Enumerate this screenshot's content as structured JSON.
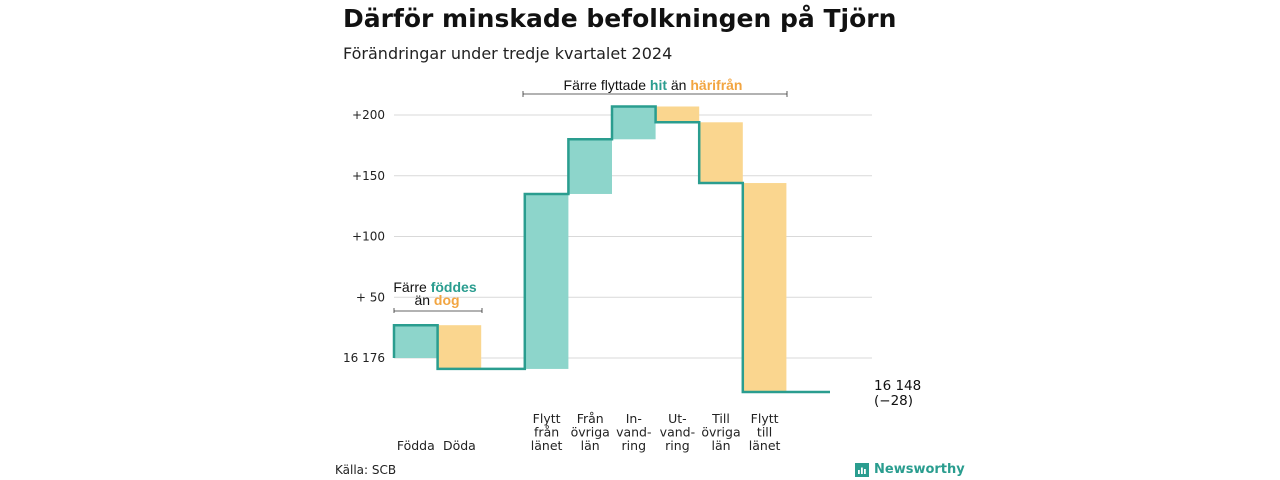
{
  "title": "Därför minskade befolkningen på Tjörn",
  "subtitle": "Förändringar under tredje kvartalet 2024",
  "source": "Källa: SCB",
  "brand": "Newsworthy",
  "colors": {
    "increase": "#8dd5cb",
    "decrease": "#fad68f",
    "line": "#2a9d8f",
    "teal_text": "#2a9d8f",
    "orange_text": "#f2a541"
  },
  "annotations": {
    "births": {
      "line1": "Färre",
      "teal_word": "föddes",
      "line2": "än",
      "orange_word": "dog"
    },
    "moves": {
      "part1": "Färre flyttade",
      "teal_word": "hit",
      "part2": "än",
      "orange_word": "härifrån"
    }
  },
  "chart_data": {
    "type": "waterfall",
    "baseline": 16176,
    "ylim": [
      -26,
      210
    ],
    "yticks": [
      {
        "value": 200,
        "label": "+200"
      },
      {
        "value": 150,
        "label": "+150"
      },
      {
        "value": 100,
        "label": "+100"
      },
      {
        "value": 50,
        "label": "+ 50"
      },
      {
        "value": 0,
        "label": "16 176"
      }
    ],
    "steps": [
      {
        "label": [
          "Födda"
        ],
        "start": 0,
        "end": 27,
        "kind": "increase"
      },
      {
        "label": [
          "Döda"
        ],
        "start": 27,
        "end": -9,
        "kind": "decrease"
      },
      {
        "label": [],
        "start": -9,
        "end": -9,
        "kind": "gap"
      },
      {
        "label": [
          "Flytt",
          "från",
          "länet"
        ],
        "start": -9,
        "end": 135,
        "kind": "increase"
      },
      {
        "label": [
          "Från",
          "övriga",
          "län"
        ],
        "start": 135,
        "end": 180,
        "kind": "increase"
      },
      {
        "label": [
          "In-",
          "vand-",
          "ring"
        ],
        "start": 180,
        "end": 207,
        "kind": "increase"
      },
      {
        "label": [
          "Ut-",
          "vand-",
          "ring"
        ],
        "start": 207,
        "end": 194,
        "kind": "decrease"
      },
      {
        "label": [
          "Till",
          "övriga",
          "län"
        ],
        "start": 194,
        "end": 144,
        "kind": "decrease"
      },
      {
        "label": [
          "Flytt",
          "till",
          "länet"
        ],
        "start": 144,
        "end": -28,
        "kind": "decrease"
      },
      {
        "label": [],
        "start": -28,
        "end": -28,
        "kind": "gap"
      }
    ],
    "end_label": {
      "line1": "16 148",
      "line2": "(−28)"
    }
  }
}
